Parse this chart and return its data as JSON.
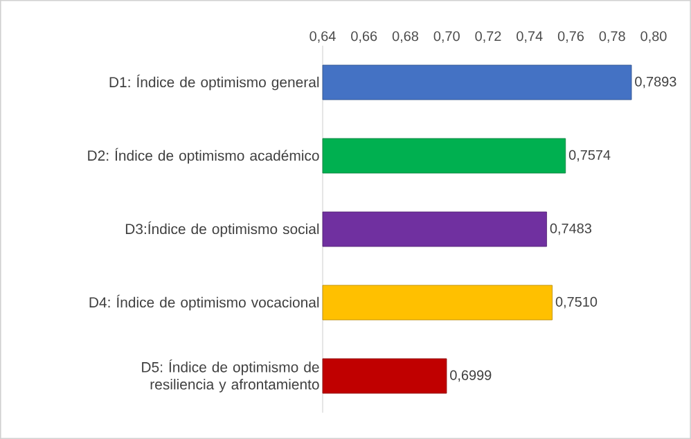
{
  "chart_data": {
    "type": "bar",
    "orientation": "horizontal",
    "categories": [
      "D1: Índice de optimismo general",
      "D2: Índice de optimismo académico",
      "D3:Índice de optimismo social",
      "D4: Índice de optimismo vocacional",
      "D5: Índice de optimismo de resiliencia y afrontamiento"
    ],
    "values": [
      0.7893,
      0.7574,
      0.7483,
      0.751,
      0.6999
    ],
    "colors": [
      "#4472c4",
      "#00b050",
      "#7030a0",
      "#ffc000",
      "#c00000"
    ],
    "value_labels": [
      "0,7893",
      "0,7574",
      "0,7483",
      "0,7510",
      "0,6999"
    ],
    "xlim": [
      0.64,
      0.8
    ],
    "xticks": [
      {
        "value": 0.64,
        "label": "0,64"
      },
      {
        "value": 0.66,
        "label": "0,66"
      },
      {
        "value": 0.68,
        "label": "0,68"
      },
      {
        "value": 0.7,
        "label": "0,70"
      },
      {
        "value": 0.72,
        "label": "0,72"
      },
      {
        "value": 0.74,
        "label": "0,74"
      },
      {
        "value": 0.76,
        "label": "0,76"
      },
      {
        "value": 0.78,
        "label": "0,78"
      },
      {
        "value": 0.8,
        "label": "0,80"
      }
    ],
    "grid": false
  }
}
